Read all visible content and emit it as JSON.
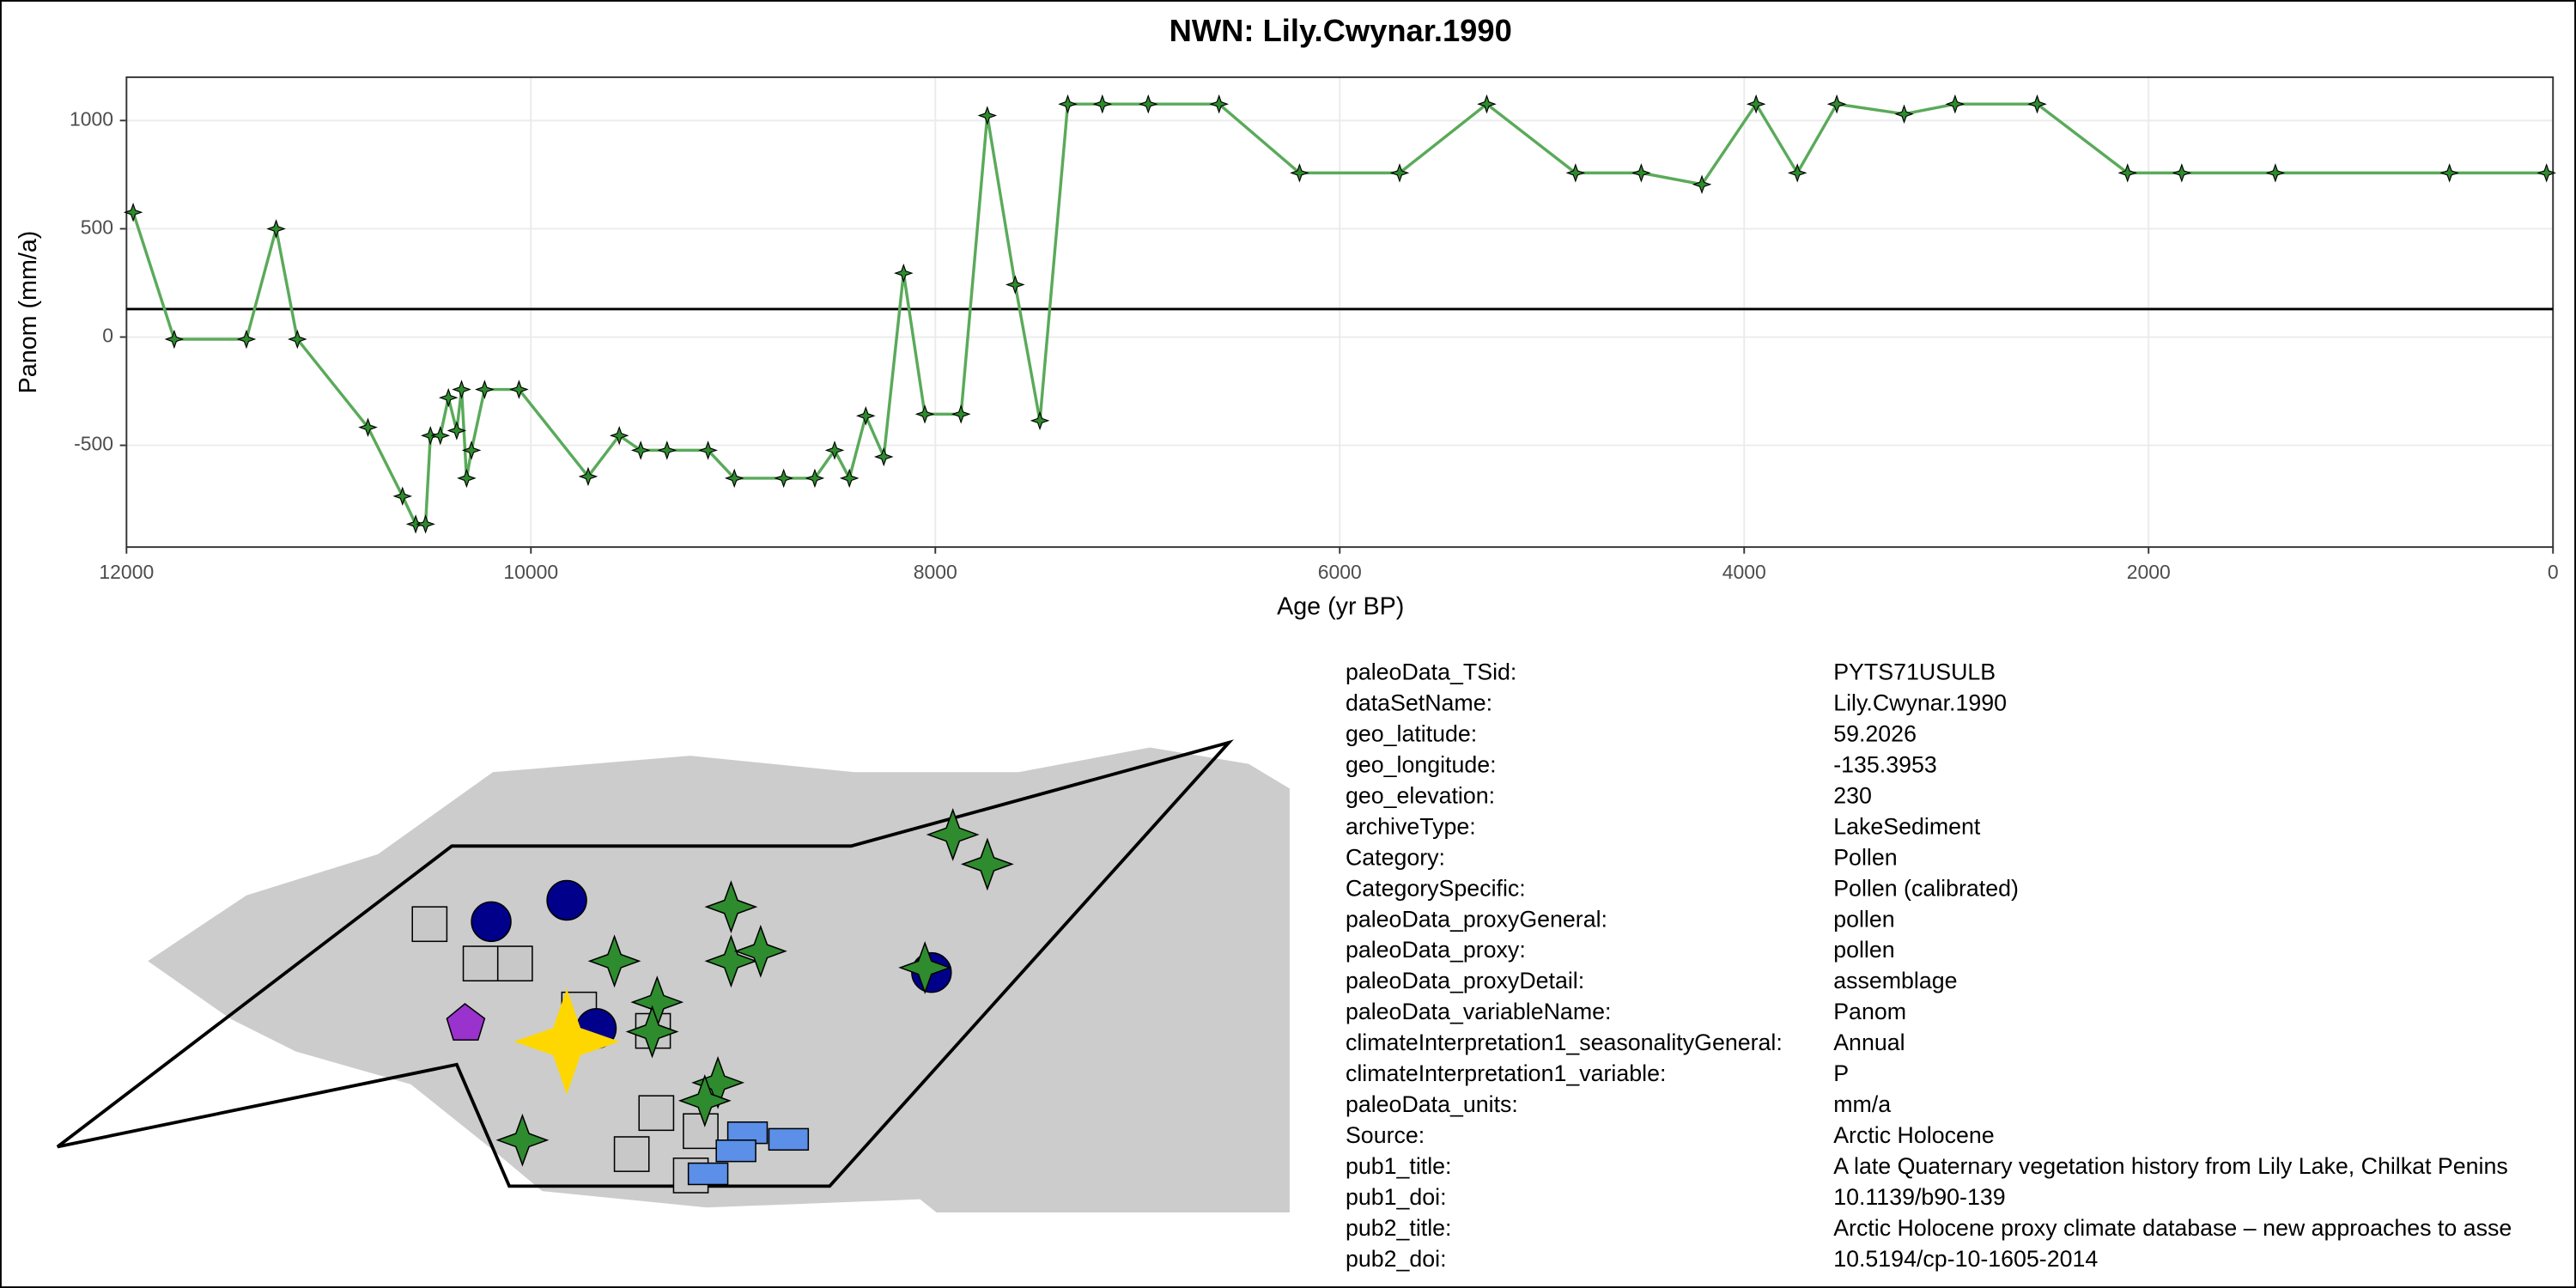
{
  "chart_data": {
    "type": "line",
    "title": "NWN: Lily.Cwynar.1990",
    "x_label": "Age (yr BP)",
    "y_label": "Panom (mm/a)",
    "x": [
      11967,
      11764,
      11407,
      11260,
      11155,
      10806,
      10635,
      10570,
      10521,
      10497,
      10448,
      10408,
      10367,
      10343,
      10318,
      10294,
      10229,
      10059,
      9717,
      9563,
      9457,
      9327,
      9124,
      8994,
      8750,
      8596,
      8498,
      8425,
      8344,
      8255,
      8157,
      8052,
      7873,
      7743,
      7605,
      7483,
      7345,
      7174,
      6947,
      6597,
      6199,
      5704,
      5273,
      4834,
      4509,
      4209,
      3941,
      3737,
      3542,
      3209,
      2957,
      2551,
      2104,
      1836,
      1373,
      512,
      32
    ],
    "series": [
      {
        "name": "Panom",
        "color": "#5aaa5a",
        "marker_color": "#2e8b2e",
        "values": [
          576,
          -10,
          -10,
          500,
          -10,
          -417,
          -735,
          -864,
          -864,
          -455,
          -455,
          -280,
          -432,
          -242,
          -652,
          -523,
          -242,
          -242,
          -644,
          -455,
          -523,
          -523,
          -523,
          -652,
          -652,
          -652,
          -523,
          -652,
          -364,
          -553,
          295,
          -356,
          -356,
          1023,
          242,
          -386,
          1076,
          1076,
          1076,
          1076,
          758,
          758,
          1076,
          758,
          758,
          705,
          1076,
          758,
          1076,
          1030,
          1076,
          1076,
          758,
          758,
          758,
          758,
          758
        ]
      }
    ],
    "hline": 129,
    "xlim": [
      12000,
      0
    ],
    "ylim": [
      -970,
      1200
    ],
    "xticks": [
      12000,
      10000,
      8000,
      6000,
      4000,
      2000,
      0
    ],
    "yticks": [
      -500,
      0,
      500,
      1000
    ],
    "grid": true
  },
  "metadata": {
    "rows": [
      [
        "paleoData_TSid:",
        "PYTS71USULB"
      ],
      [
        "dataSetName:",
        "Lily.Cwynar.1990"
      ],
      [
        "geo_latitude:",
        "59.2026"
      ],
      [
        "geo_longitude:",
        "-135.3953"
      ],
      [
        "geo_elevation:",
        "230"
      ],
      [
        "archiveType:",
        "LakeSediment"
      ],
      [
        "Category:",
        "Pollen"
      ],
      [
        "CategorySpecific:",
        "Pollen (calibrated)"
      ],
      [
        "paleoData_proxyGeneral:",
        "pollen"
      ],
      [
        "paleoData_proxy:",
        "pollen"
      ],
      [
        "paleoData_proxyDetail:",
        "assemblage"
      ],
      [
        "paleoData_variableName:",
        "Panom"
      ],
      [
        "climateInterpretation1_seasonalityGeneral:",
        "Annual"
      ],
      [
        "climateInterpretation1_variable:",
        "P"
      ],
      [
        "paleoData_units:",
        "mm/a"
      ],
      [
        "Source:",
        "Arctic Holocene"
      ],
      [
        "pub1_title:",
        "A late Quaternary vegetation history from Lily Lake, Chilkat Penins"
      ],
      [
        "pub1_doi:",
        "10.1139/b90-139"
      ],
      [
        "pub2_title:",
        "Arctic Holocene proxy climate database – new approaches to asse"
      ],
      [
        "pub2_doi:",
        "10.5194/cp-10-1605-2014"
      ]
    ]
  }
}
